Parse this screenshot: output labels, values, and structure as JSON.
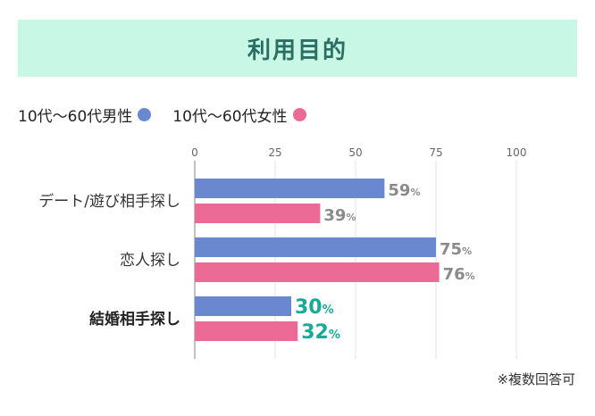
{
  "title": "利用目的",
  "note": "※複数回答可",
  "colors": {
    "male": "#6a88d0",
    "female": "#ec6a96",
    "highlight": "#1aa897",
    "label": "#8a8a8a"
  },
  "chart_data": {
    "type": "bar",
    "orientation": "horizontal",
    "categories": [
      "デート/遊び相手探し",
      "恋人探し",
      "結婚相手探し"
    ],
    "highlight_category": "結婚相手探し",
    "series": [
      {
        "name": "10代〜60代男性",
        "values": [
          59,
          75,
          30
        ]
      },
      {
        "name": "10代〜60代女性",
        "values": [
          39,
          76,
          32
        ]
      }
    ],
    "xlim": [
      0,
      100
    ],
    "xticks": [
      0,
      25,
      50,
      75,
      100
    ],
    "unit": "%",
    "grid": true,
    "legend_position": "top-left"
  }
}
